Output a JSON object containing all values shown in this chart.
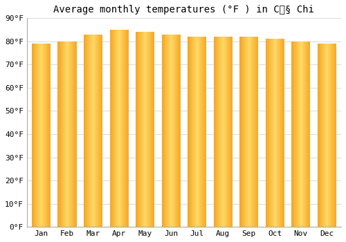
{
  "title": "Average monthly temperatures (°F ) in Củ§ Chi",
  "months": [
    "Jan",
    "Feb",
    "Mar",
    "Apr",
    "May",
    "Jun",
    "Jul",
    "Aug",
    "Sep",
    "Oct",
    "Nov",
    "Dec"
  ],
  "values": [
    79,
    80,
    83,
    85,
    84,
    83,
    82,
    82,
    82,
    81,
    80,
    79
  ],
  "ylim": [
    0,
    90
  ],
  "yticks": [
    0,
    10,
    20,
    30,
    40,
    50,
    60,
    70,
    80,
    90
  ],
  "ytick_labels": [
    "0°F",
    "10°F",
    "20°F",
    "30°F",
    "40°F",
    "50°F",
    "60°F",
    "70°F",
    "80°F",
    "90°F"
  ],
  "bar_color_edge": "#F5A623",
  "bar_color_center": "#FFD966",
  "background_color": "#ffffff",
  "grid_color": "#dddddd",
  "title_fontsize": 10,
  "tick_fontsize": 8,
  "bar_width": 0.72,
  "figsize": [
    5.0,
    3.5
  ],
  "dpi": 100
}
